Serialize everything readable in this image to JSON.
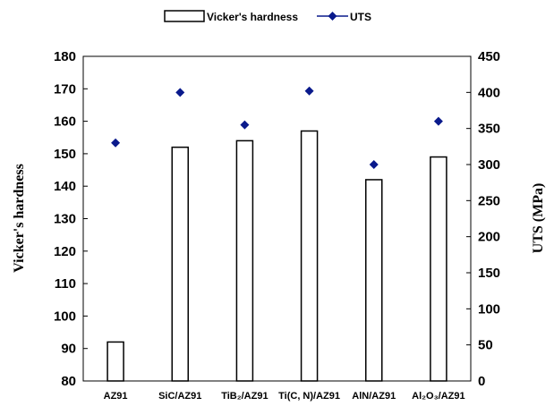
{
  "chart_data": {
    "type": "bar",
    "categories": [
      "AZ91",
      "SiC/AZ91",
      "TiB₂/AZ91",
      "Ti(C, N)/AZ91",
      "AlN/AZ91",
      "Al₂O₃/AZ91"
    ],
    "series": [
      {
        "name": "Vicker's hardness",
        "kind": "bar",
        "axis": "left",
        "values": [
          92,
          152,
          154,
          157,
          142,
          149
        ]
      },
      {
        "name": "UTS",
        "kind": "marker",
        "axis": "right",
        "values": [
          330,
          400,
          355,
          402,
          300,
          360
        ]
      }
    ],
    "ylabel": "Vicker's hardness",
    "y2label": "UTS (MPa)",
    "ylim": [
      80,
      180
    ],
    "y2lim": [
      0,
      450
    ],
    "yticks": [
      80,
      90,
      100,
      110,
      120,
      130,
      140,
      150,
      160,
      170,
      180
    ],
    "y2ticks": [
      0,
      50,
      100,
      150,
      200,
      250,
      300,
      350,
      400,
      450
    ],
    "legend_position": "top-center",
    "grid": false,
    "colors": {
      "bar_fill": "#ffffff",
      "bar_stroke": "#000000",
      "marker": "#0a1a8c"
    }
  }
}
